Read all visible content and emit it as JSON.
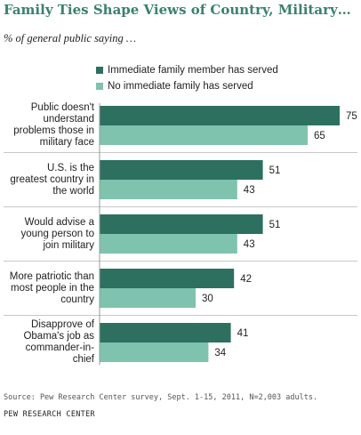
{
  "title": "Family Ties Shape Views of Country, Military…",
  "subtitle": "% of general public saying …",
  "colors": {
    "series1": "#2e7060",
    "series2": "#7fc2ae",
    "title": "#3a8170"
  },
  "footer": {
    "source": "Source:  Pew Research Center survey, Sept. 1-15, 2011, N=2,003 adults.",
    "org": "PEW RESEARCH CENTER"
  },
  "chart_data": {
    "type": "bar",
    "orientation": "horizontal",
    "categories": [
      "Public doesn't understand problems those in military face",
      "U.S. is the greatest country in the world",
      "Would advise a young person to join military",
      "More patriotic than most people in the country",
      "Disapprove of Obama's job as commander-in-chief"
    ],
    "category_lines": [
      [
        "Public doesn't",
        "understand",
        "problems those in",
        "military face"
      ],
      [
        "U.S. is the",
        "greatest country in",
        "the world"
      ],
      [
        "Would advise a",
        "young person to",
        "join military"
      ],
      [
        "More patriotic than",
        "most people in the",
        "country"
      ],
      [
        "Disapprove of",
        "Obama's job as",
        "commander-in-",
        "chief"
      ]
    ],
    "series": [
      {
        "name": "Immediate family member has served",
        "values": [
          75,
          51,
          51,
          42,
          41
        ]
      },
      {
        "name": "No immediate family has served",
        "values": [
          65,
          43,
          43,
          30,
          34
        ]
      }
    ],
    "xlim": [
      0,
      75
    ],
    "data_labels": true,
    "legend_position": "top"
  }
}
